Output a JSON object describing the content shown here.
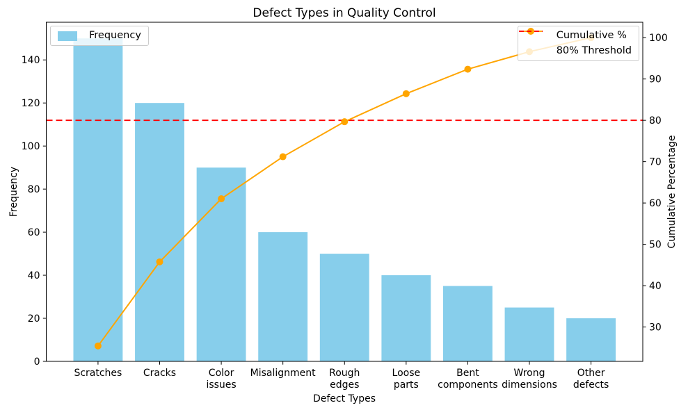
{
  "title": "Defect Types in Quality Control",
  "axes": {
    "x_label": "Defect Types",
    "y_left_label": "Frequency",
    "y_right_label": "Cumulative Percentage"
  },
  "legend_left": {
    "items": [
      {
        "label": "Frequency",
        "type": "patch",
        "color": "#87CEEB",
        "icon_name": "frequency-bar-swatch-icon"
      }
    ]
  },
  "legend_right": {
    "items": [
      {
        "label": "Cumulative %",
        "type": "line-marker",
        "color": "#FFA500",
        "icon_name": "cumulative-line-swatch-icon"
      },
      {
        "label": "80% Threshold",
        "type": "dashed-line",
        "color": "#FF0000",
        "icon_name": "threshold-dash-swatch-icon"
      }
    ]
  },
  "chart_data": {
    "type": "bar",
    "subtype": "pareto (bar + cumulative line, dual y-axis)",
    "title": "Defect Types in Quality Control",
    "xlabel": "Defect Types",
    "ylabel_left": "Frequency",
    "ylabel_right": "Cumulative Percentage",
    "categories": [
      "Scratches",
      "Cracks",
      "Color issues",
      "Misalignment",
      "Rough edges",
      "Loose parts",
      "Bent components",
      "Wrong dimensions",
      "Other defects"
    ],
    "category_label_lines": [
      [
        "Scratches"
      ],
      [
        "Cracks"
      ],
      [
        "Color",
        "issues"
      ],
      [
        "Misalignment"
      ],
      [
        "Rough",
        "edges"
      ],
      [
        "Loose",
        "parts"
      ],
      [
        "Bent",
        "components"
      ],
      [
        "Wrong",
        "dimensions"
      ],
      [
        "Other",
        "defects"
      ]
    ],
    "series": [
      {
        "name": "Frequency",
        "type": "bar",
        "axis": "left",
        "color": "#87CEEB",
        "values": [
          150,
          120,
          90,
          60,
          50,
          40,
          35,
          25,
          20
        ]
      },
      {
        "name": "Cumulative %",
        "type": "line",
        "axis": "right",
        "color": "#FFA500",
        "values": [
          25.42,
          45.76,
          61.02,
          71.19,
          79.66,
          86.44,
          92.37,
          96.61,
          100.0
        ]
      }
    ],
    "threshold": {
      "label": "80% Threshold",
      "value": 80,
      "color": "#FF0000",
      "style": "dashed"
    },
    "y_left": {
      "ticks": [
        0,
        20,
        40,
        60,
        80,
        100,
        120,
        140
      ],
      "lim": [
        0,
        157.5
      ]
    },
    "y_right": {
      "ticks": [
        30,
        40,
        50,
        60,
        70,
        80,
        90,
        100
      ],
      "lim": [
        21.69,
        103.73
      ]
    },
    "x_lim": [
      -0.84,
      8.84
    ],
    "bar_width": 0.8,
    "grid": false,
    "legend_positions": [
      "upper left",
      "upper right"
    ]
  }
}
